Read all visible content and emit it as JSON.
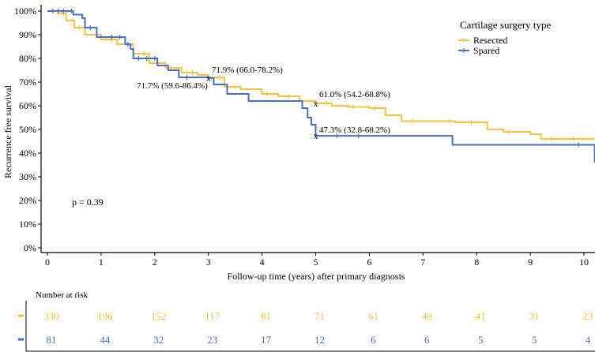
{
  "chart_data": {
    "type": "line",
    "subtype": "kaplan-meier",
    "xlabel": "Follow-up time (years) after primary diagnosis",
    "ylabel": "Recurrence free survival",
    "xlim": [
      0,
      10.2
    ],
    "ylim": [
      0,
      100
    ],
    "xticks": [
      "0",
      "1",
      "2",
      "3",
      "4",
      "5",
      "6",
      "7",
      "8",
      "9",
      "10"
    ],
    "yticks": [
      "0%",
      "10%",
      "20%",
      "30%",
      "40%",
      "50%",
      "60%",
      "70%",
      "80%",
      "90%",
      "100%"
    ],
    "legend": {
      "title": "Cartilage surgery type",
      "position": "top-right"
    },
    "series": [
      {
        "name": "Resected",
        "color": "#F5C242",
        "x": [
          0,
          0.2,
          0.35,
          0.5,
          0.7,
          1.0,
          1.3,
          1.6,
          1.9,
          2.2,
          2.5,
          2.8,
          3.0,
          3.3,
          3.6,
          4.0,
          4.3,
          4.7,
          5.0,
          5.3,
          5.6,
          6.0,
          6.3,
          6.6,
          7.0,
          7.6,
          8.2,
          8.5,
          9.0,
          9.2,
          10.2
        ],
        "y": [
          100,
          99,
          96,
          93,
          90,
          88,
          86,
          82,
          78,
          76,
          74,
          73,
          71.9,
          68,
          67,
          65,
          64,
          62,
          61,
          60,
          59.5,
          59,
          56,
          53.5,
          53.5,
          53,
          50,
          49,
          48,
          46,
          46
        ],
        "censor": [
          0.1,
          0.3,
          0.6,
          1.2,
          1.8,
          2.3,
          2.7,
          3.2,
          3.5,
          4.1,
          4.5,
          5.2,
          5.7,
          6.1,
          6.8,
          7.5,
          7.9,
          8.6,
          9.4,
          9.8
        ]
      },
      {
        "name": "Spared",
        "color": "#4A6FC4",
        "x": [
          0,
          0.48,
          0.65,
          0.7,
          0.92,
          1.45,
          1.55,
          1.6,
          1.75,
          2.05,
          2.25,
          2.45,
          3.0,
          3.1,
          3.35,
          3.75,
          4.75,
          4.85,
          4.92,
          5.0,
          7.55,
          10.2
        ],
        "y": [
          100,
          98.5,
          97,
          93,
          89,
          86,
          84,
          80,
          80,
          77,
          75,
          72,
          71.7,
          69,
          65,
          62,
          59,
          55,
          52,
          47.3,
          43.5,
          36
        ],
        "censor": [
          0.1,
          0.2,
          0.3,
          0.45,
          0.8,
          1.2,
          1.35,
          1.5,
          1.7,
          1.85,
          2.0,
          2.6,
          5.4,
          5.8,
          9.9
        ]
      }
    ],
    "annotations": [
      {
        "text": "71.9% (66.0-78.2%)",
        "x": 3,
        "y": 71.9
      },
      {
        "text": "71.7% (59.6-86.4%)",
        "x": 3,
        "y": 71.7
      },
      {
        "text": "61.0% (54.2-68.8%)",
        "x": 5,
        "y": 61.0
      },
      {
        "text": "47.3% (32.8-68.2%)",
        "x": 5,
        "y": 47.3
      },
      {
        "text": "p = 0.39"
      }
    ],
    "risk_table": {
      "title": "Number at risk",
      "times": [
        0,
        1,
        2,
        3,
        4,
        5,
        6,
        7,
        8,
        9,
        10
      ],
      "rows": [
        {
          "name": "Resected",
          "values": [
            "330",
            "196",
            "152",
            "117",
            "81",
            "71",
            "61",
            "48",
            "41",
            "31",
            "23"
          ]
        },
        {
          "name": "Spared",
          "values": [
            "81",
            "44",
            "32",
            "23",
            "17",
            "12",
            "6",
            "6",
            "5",
            "5",
            "4"
          ]
        }
      ]
    }
  }
}
